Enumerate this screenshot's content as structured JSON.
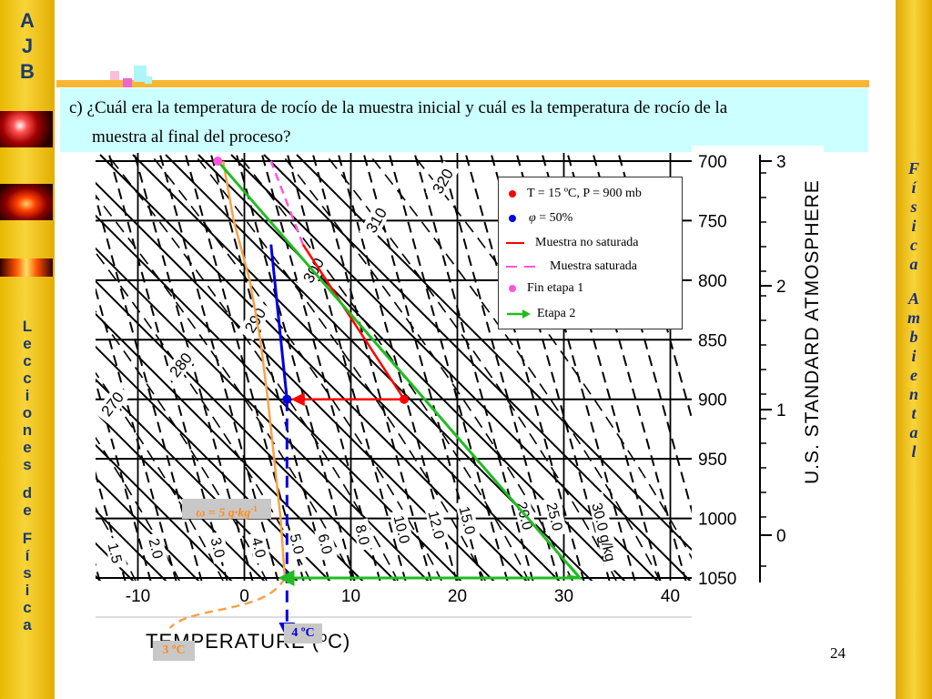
{
  "sidebar": {
    "letters_top": [
      "A",
      "J",
      "B"
    ],
    "letters_lecciones": [
      "L",
      "e",
      "c",
      "c",
      "i",
      "o",
      "n",
      "e",
      "s"
    ],
    "letters_de": [
      "d",
      "e"
    ],
    "letters_fisica": [
      "F",
      "í",
      "s",
      "i",
      "c",
      "a"
    ]
  },
  "right_sidebar": {
    "letters_fisica": [
      "F",
      "í",
      "s",
      "i",
      "c",
      "a"
    ],
    "letters_ambiental": [
      "A",
      "m",
      "b",
      "i",
      "e",
      "n",
      "t",
      "a",
      "l"
    ]
  },
  "question": {
    "line1": "c) ¿Cuál era la temperatura de rocío de la muestra inicial y cuál es la temperatura de rocío de la",
    "line2": "muestra al final del proceso?"
  },
  "page_number": "24",
  "legend": {
    "items": [
      {
        "label": "T = 15 ºC, P = 900 mb",
        "symbol": "dot",
        "color": "#ff0000"
      },
      {
        "label": "= 50%",
        "prefix": "φ",
        "symbol": "dot",
        "color": "#0000dd"
      },
      {
        "label": "Muestra no saturada",
        "symbol": "line",
        "color": "#ff0000"
      },
      {
        "label": "Muestra saturada",
        "symbol": "dashed",
        "color": "#ff55dd"
      },
      {
        "label": "Fin etapa 1",
        "symbol": "dot",
        "color": "#ff55dd"
      },
      {
        "label": "Etapa 2",
        "symbol": "arrow",
        "color": "#22bb22"
      }
    ]
  },
  "labels": {
    "mixing_ratio_box": "ω = 5 g·kg",
    "mixing_ratio_exp": "-1",
    "dewpoint_initial": "4 ºC",
    "dewpoint_final": "3 ºC"
  },
  "colors": {
    "sidebar_yellow": "#f8d43a",
    "question_bg": "#ccffff",
    "top_line": "#f7b733",
    "red": "#ff0000",
    "blue": "#0000dd",
    "magenta": "#ff55dd",
    "green": "#22bb22",
    "orange": "#f7a24a"
  },
  "chart_data": {
    "type": "line",
    "title": "",
    "xlabel": "TEMPERATURE (ºC)",
    "ylabel_left": "",
    "ylabel_right": "U.S. STANDARD ATMOSPHERE",
    "x_ticks": [
      -10,
      0,
      10,
      20,
      30,
      40
    ],
    "pressure_ticks_mb": [
      700,
      750,
      800,
      850,
      900,
      950,
      1000,
      1050
    ],
    "height_ticks_km": [
      3,
      2,
      1,
      0
    ],
    "xlim": [
      -15,
      40
    ],
    "ylim_mb": [
      700,
      1050
    ],
    "dry_adiabat_labels_K": [
      "270",
      "280",
      "290",
      "300",
      "310",
      "320"
    ],
    "mixing_ratio_labels_gkg": [
      "1.5",
      "2.0",
      "3.0",
      "4.0",
      "5.0",
      "6.0",
      "8.0",
      "10.0",
      "12.0",
      "15.0",
      "20.0",
      "25.0",
      "30.0 g/kg"
    ],
    "series": [
      {
        "name": "Muestra no saturada",
        "color": "#ff0000",
        "style": "solid",
        "points": [
          [
            15,
            900
          ],
          [
            5.5,
            770
          ]
        ]
      },
      {
        "name": "Muestra saturada",
        "color": "#ff55dd",
        "style": "dashed",
        "points": [
          [
            5.5,
            770
          ],
          [
            2.5,
            700
          ]
        ]
      },
      {
        "name": "Etapa 2",
        "color": "#22bb22",
        "style": "solid",
        "points": [
          [
            -2.5,
            700
          ],
          [
            31.5,
            1050
          ]
        ]
      },
      {
        "name": "",
        "color": "#0000dd",
        "style": "solid",
        "points": [
          [
            4,
            900
          ],
          [
            2.5,
            770
          ]
        ]
      },
      {
        "name": "",
        "color": "#0000dd",
        "style": "dashed",
        "points": [
          [
            4,
            900
          ],
          [
            4,
            1080
          ]
        ]
      },
      {
        "name": "",
        "color": "#f7a24a",
        "style": "solid",
        "points": [
          [
            -2,
            700
          ],
          [
            -1,
            750
          ],
          [
            0.5,
            800
          ],
          [
            1.5,
            850
          ],
          [
            2.2,
            900
          ],
          [
            2.8,
            950
          ],
          [
            3.4,
            1000
          ],
          [
            3.8,
            1050
          ]
        ]
      }
    ],
    "points": [
      {
        "name": "T = 15 ºC, P = 900 mb",
        "x": 15,
        "p": 900,
        "color": "#ff0000"
      },
      {
        "name": "φ = 50%",
        "x": 4,
        "p": 900,
        "color": "#0000dd"
      },
      {
        "name": "Fin etapa 1",
        "x": -2.5,
        "p": 700,
        "color": "#ff55dd"
      }
    ],
    "grid": true
  }
}
